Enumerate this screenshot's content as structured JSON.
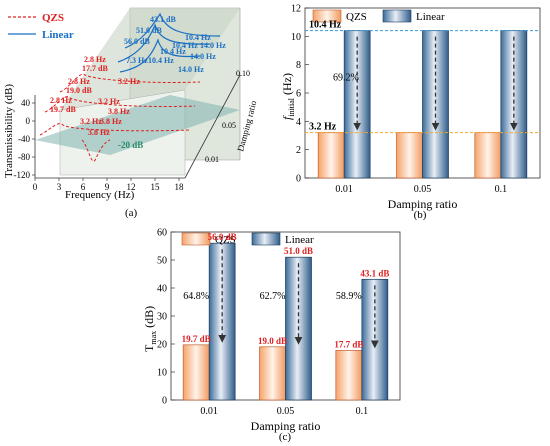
{
  "panel_a": {
    "label": "(a)",
    "legend": [
      "QZS",
      "Linear"
    ],
    "xlabel": "Frequency (Hz)",
    "ylabel": "Transmissibility (dB)",
    "zlabel": "Damping ratio",
    "x_ticks": [
      "0",
      "3",
      "6",
      "9",
      "12",
      "15",
      "18"
    ],
    "y_ticks": [
      "-120",
      "-80",
      "-40",
      "0",
      "40"
    ],
    "z_ticks": [
      "0.01",
      "0.05",
      "0.10"
    ],
    "minus20": "-20 dB",
    "peak_top": "43.1 dB",
    "linear_labels": [
      "51.0 dB",
      "56.0 dB",
      "10.4 Hz",
      "10.4 Hz",
      "10.4 Hz",
      "10.4 Hz",
      "14.0 Hz",
      "14.0 Hz",
      "14.0 Hz",
      "7.3 Hz"
    ],
    "qzs_labels": [
      "2.8 Hz",
      "17.7 dB",
      "3.2 Hz",
      "2.8 Hz",
      "19.0 dB",
      "3.2 Hz",
      "2.8 Hz",
      "19.7 dB",
      "3.2 Hz",
      "3.8 Hz",
      "3.8 Hz",
      "3.8 Hz"
    ]
  },
  "chart_data": [
    {
      "type": "bar",
      "panel": "(b)",
      "xlabel": "Damping ratio",
      "ylabel": "f_initial (Hz)",
      "categories": [
        "0.01",
        "0.05",
        "0.1"
      ],
      "series": [
        {
          "name": "QZS",
          "values": [
            3.2,
            3.2,
            3.2
          ]
        },
        {
          "name": "Linear",
          "values": [
            10.4,
            10.4,
            10.4
          ]
        }
      ],
      "ylim": [
        0,
        12
      ],
      "yticks": [
        "0",
        "2",
        "4",
        "6",
        "8",
        "10",
        "12"
      ],
      "annotations": [
        "10.4 Hz",
        "3.2 Hz",
        "69.2%"
      ]
    },
    {
      "type": "bar",
      "panel": "(c)",
      "xlabel": "Damping ratio",
      "ylabel": "T_max (dB)",
      "categories": [
        "0.01",
        "0.05",
        "0.1"
      ],
      "series": [
        {
          "name": "QZS",
          "values": [
            19.7,
            19.0,
            17.7
          ]
        },
        {
          "name": "Linear",
          "values": [
            56.0,
            51.0,
            43.1
          ]
        }
      ],
      "ylim": [
        0,
        60
      ],
      "yticks": [
        "0",
        "10",
        "20",
        "30",
        "40",
        "50",
        "60"
      ],
      "data_labels": {
        "QZS": [
          "19.7 dB",
          "19.0 dB",
          "17.7 dB"
        ],
        "Linear": [
          "56.0 dB",
          "51.0 dB",
          "43.1 dB"
        ]
      },
      "percent_labels": [
        "64.8%",
        "62.7%",
        "58.9%"
      ]
    }
  ],
  "colors": {
    "qzs": "#f0a070",
    "linear": "#3a6fa0",
    "red": "#e02020",
    "blue": "#1a6fc4",
    "orange_dash": "#f5a623",
    "blue_dash": "#3a9ad9"
  }
}
